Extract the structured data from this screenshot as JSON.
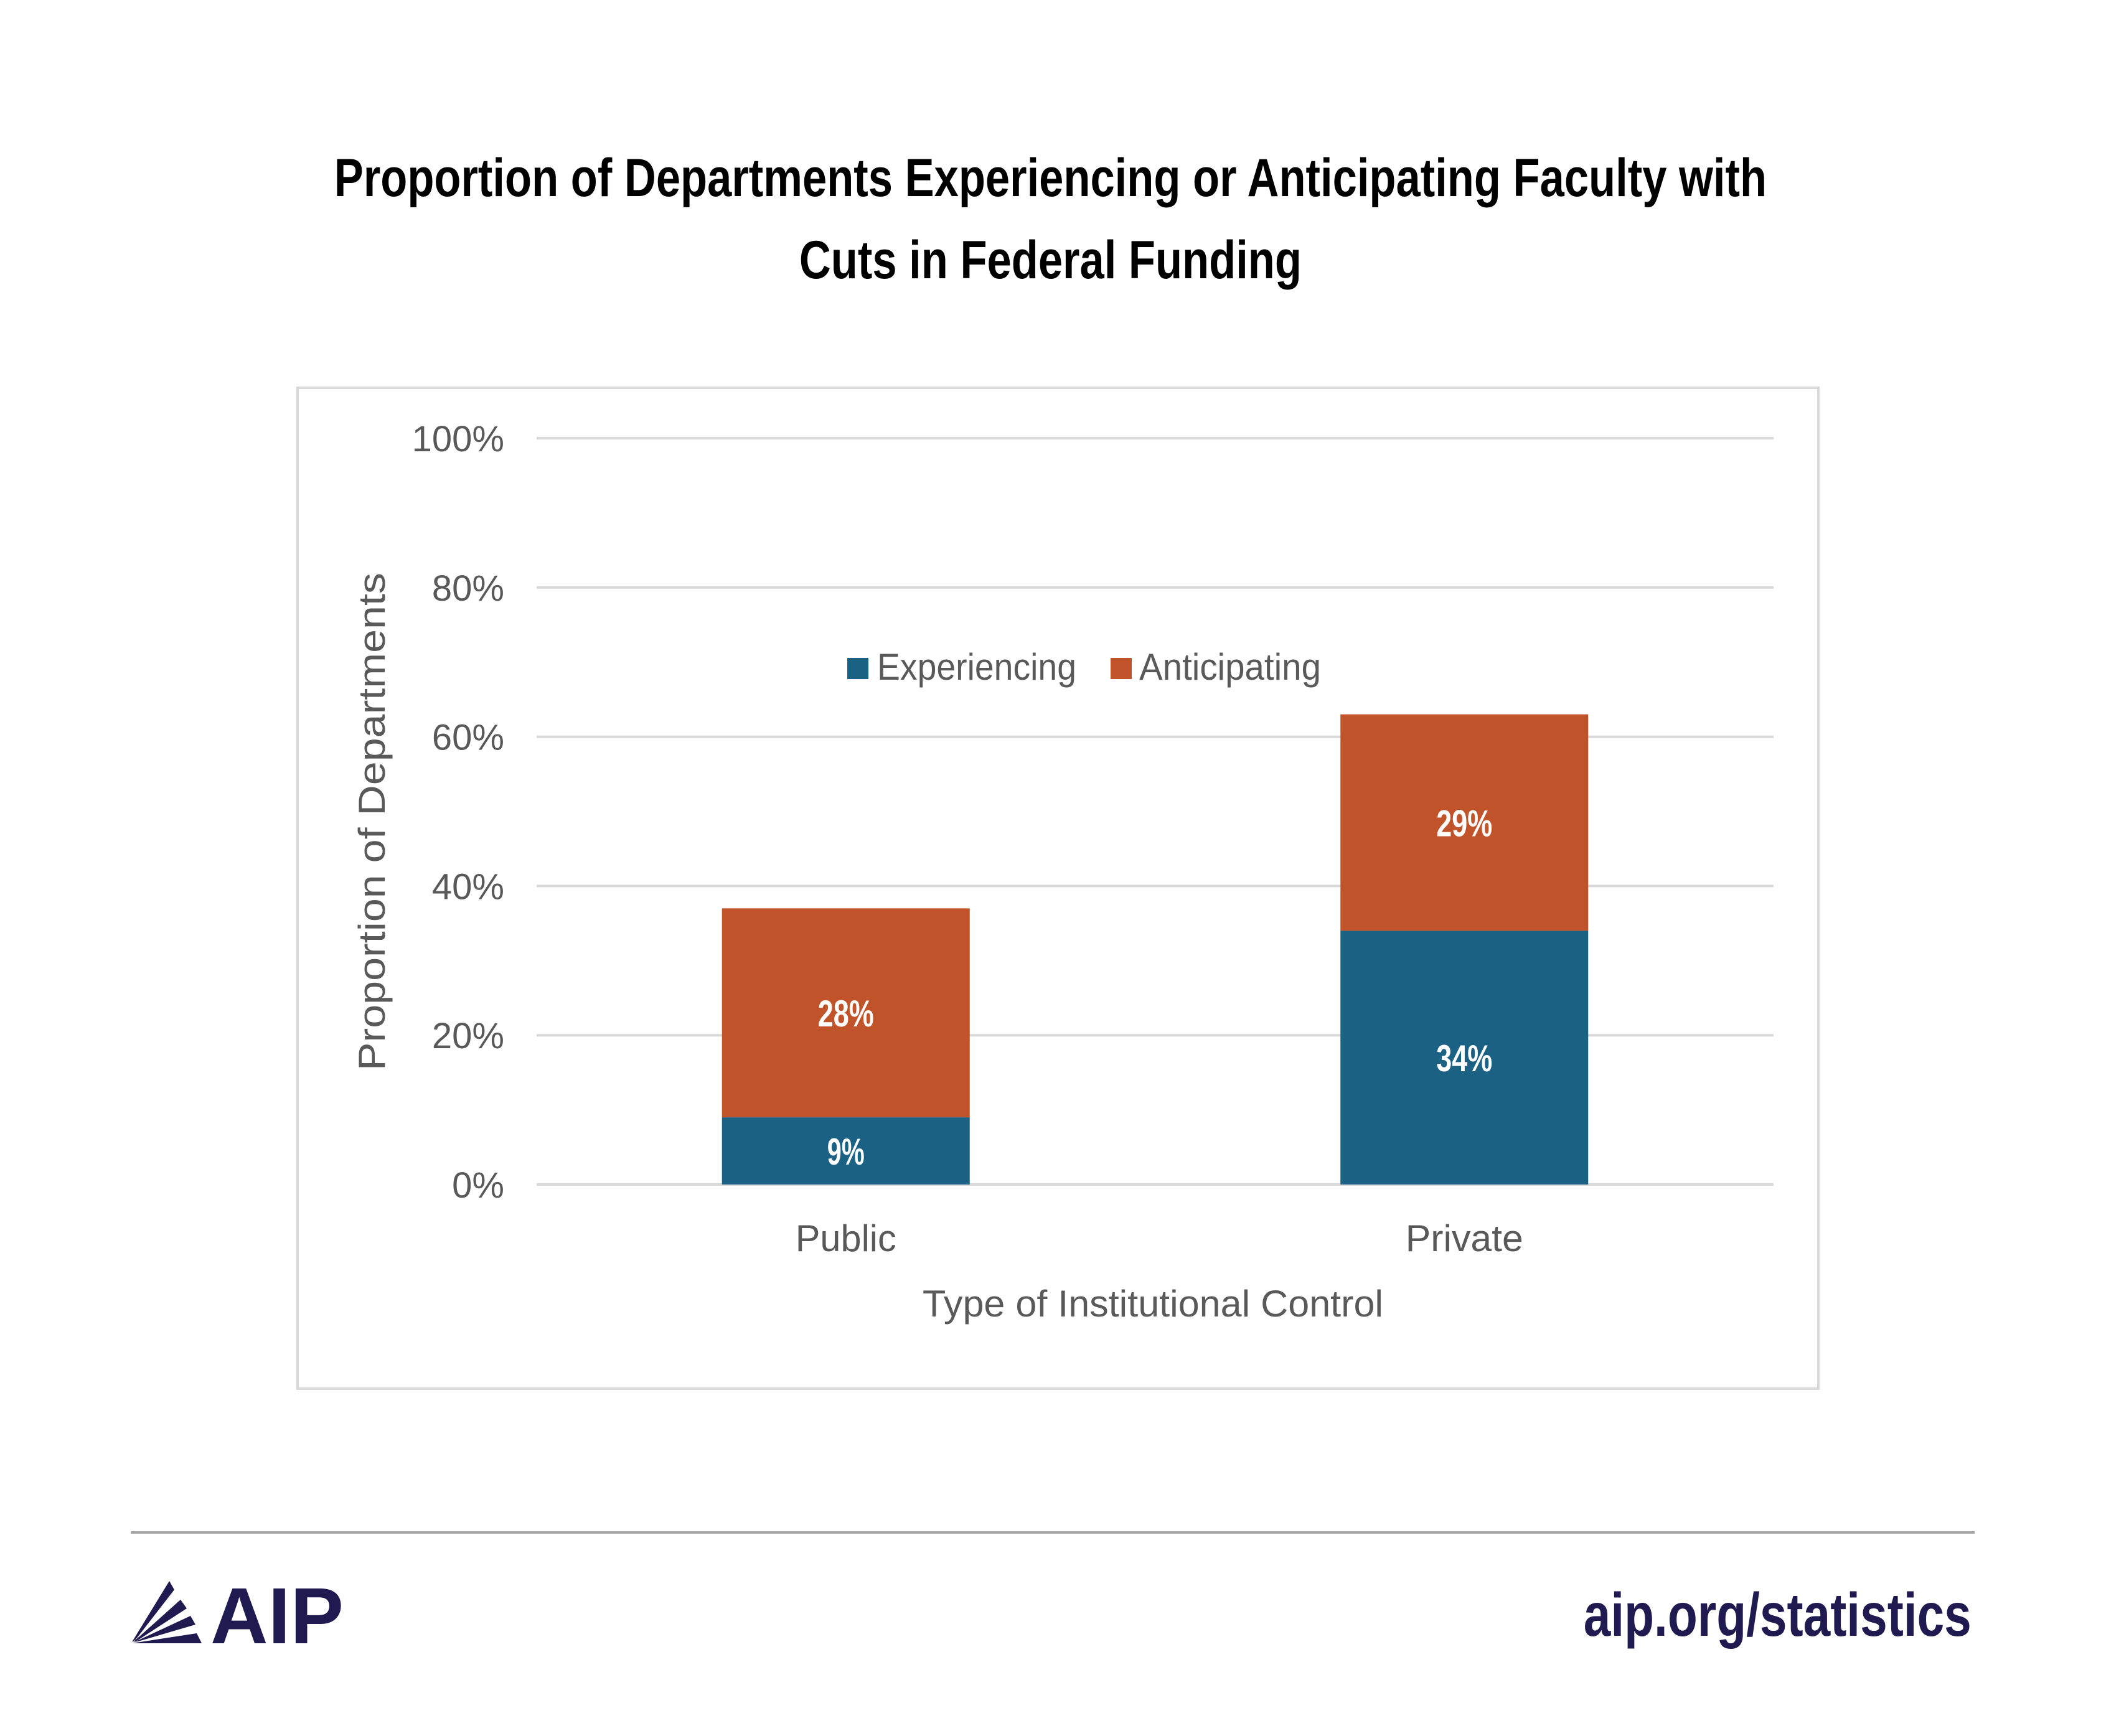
{
  "title": {
    "line1": "Proportion of Departments Experiencing or Anticipating Faculty with",
    "line2": "Cuts in Federal Funding"
  },
  "chart_data": {
    "type": "bar",
    "stacked": true,
    "title": "Proportion of Departments Experiencing or Anticipating Faculty with Cuts in Federal Funding",
    "xlabel": "Type of Institutional Control",
    "ylabel": "Proportion of Departments",
    "categories": [
      "Public",
      "Private"
    ],
    "series": [
      {
        "name": "Experiencing",
        "values": [
          9,
          34
        ],
        "labels": [
          "9%",
          "34%"
        ],
        "color": "#1b6184"
      },
      {
        "name": "Anticipating",
        "values": [
          28,
          29
        ],
        "labels": [
          "28%",
          "29%"
        ],
        "color": "#c0532a"
      }
    ],
    "ylim": [
      0,
      100
    ],
    "yticks": [
      0,
      20,
      40,
      60,
      80,
      100
    ],
    "ytick_labels": [
      "0%",
      "20%",
      "40%",
      "60%",
      "80%",
      "100%"
    ],
    "grid": true,
    "legend": {
      "position": "top-center",
      "entries": [
        "Experiencing",
        "Anticipating"
      ]
    }
  },
  "footer": {
    "logo_text": "AIP",
    "url": "aip.org/statistics",
    "brand_color": "#1f1a4f"
  }
}
